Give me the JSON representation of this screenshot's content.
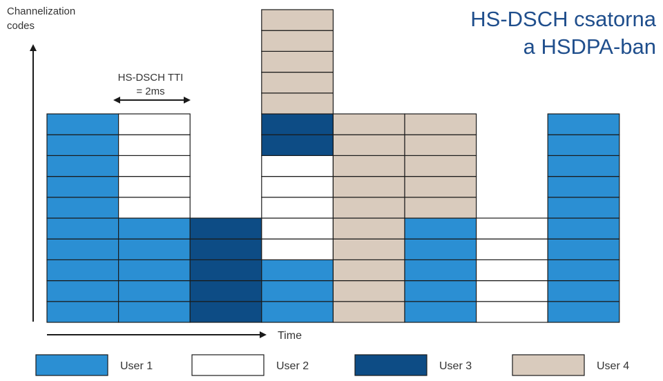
{
  "title": {
    "line1": "HS-DSCH csatorna",
    "line2": "a HSDPA-ban"
  },
  "y_axis_label": [
    "Channelization",
    "codes"
  ],
  "x_axis_label": "Time",
  "tti_annotation": [
    "HS-DSCH TTI",
    "= 2ms"
  ],
  "colors": {
    "User 1": "#2b8fd3",
    "User 2": "#ffffff",
    "User 3": "#0d4c85",
    "User 4": "#d9cbbd",
    "stroke": "#1a1a1a"
  },
  "legend": [
    "User 1",
    "User 2",
    "User 3",
    "User 4"
  ],
  "timeslots": [
    {
      "slot": 1,
      "codes_bottom_to_top": [
        "User 1",
        "User 1",
        "User 1",
        "User 1",
        "User 1",
        "User 1",
        "User 1",
        "User 1",
        "User 1",
        "User 1"
      ]
    },
    {
      "slot": 2,
      "codes_bottom_to_top": [
        "User 1",
        "User 1",
        "User 1",
        "User 1",
        "User 1",
        "User 2",
        "User 2",
        "User 2",
        "User 2",
        "User 2"
      ]
    },
    {
      "slot": 3,
      "codes_bottom_to_top": [
        "User 3",
        "User 3",
        "User 3",
        "User 3",
        "User 3"
      ]
    },
    {
      "slot": 4,
      "codes_bottom_to_top": [
        "User 1",
        "User 1",
        "User 1",
        "User 2",
        "User 2",
        "User 2",
        "User 2",
        "User 2",
        "User 3",
        "User 3",
        "User 4",
        "User 4",
        "User 4",
        "User 4",
        "User 4"
      ]
    },
    {
      "slot": 5,
      "codes_bottom_to_top": [
        "User 4",
        "User 4",
        "User 4",
        "User 4",
        "User 4",
        "User 4",
        "User 4",
        "User 4",
        "User 4",
        "User 4"
      ]
    },
    {
      "slot": 6,
      "codes_bottom_to_top": [
        "User 1",
        "User 1",
        "User 1",
        "User 1",
        "User 1",
        "User 4",
        "User 4",
        "User 4",
        "User 4",
        "User 4"
      ]
    },
    {
      "slot": 7,
      "codes_bottom_to_top": [
        "User 2",
        "User 2",
        "User 2",
        "User 2",
        "User 2"
      ]
    },
    {
      "slot": 8,
      "codes_bottom_to_top": [
        "User 1",
        "User 1",
        "User 1",
        "User 1",
        "User 1",
        "User 1",
        "User 1",
        "User 1",
        "User 1",
        "User 1"
      ]
    }
  ]
}
